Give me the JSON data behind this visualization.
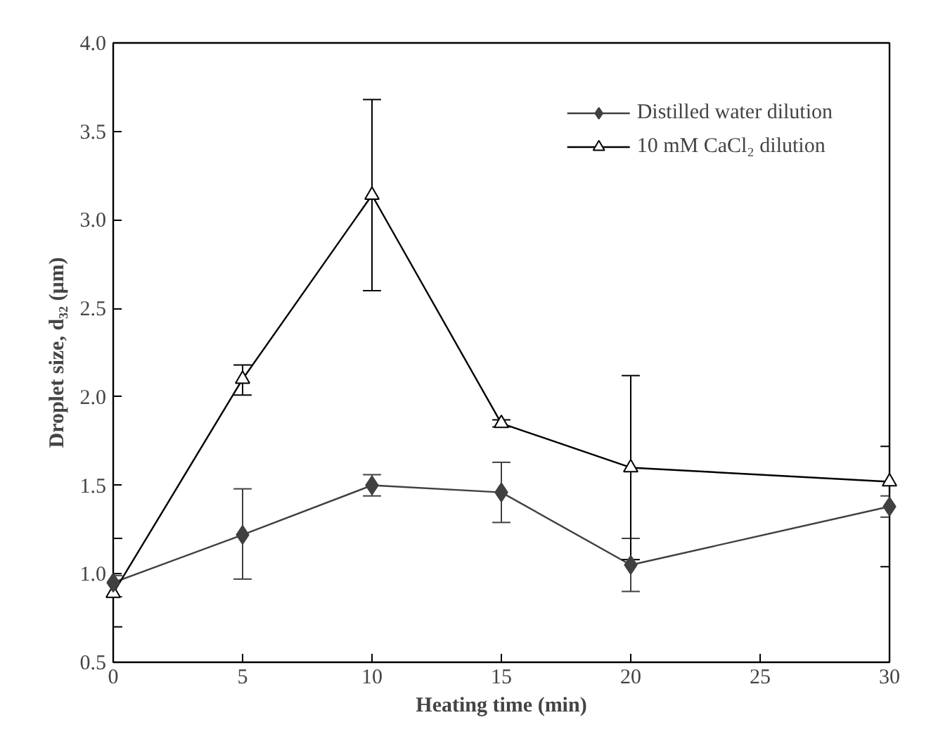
{
  "chart_data": {
    "type": "line",
    "xlabel": "Heating time (min)",
    "ylabel": "Droplet size, d₃₂ (μm)",
    "x": [
      0,
      5,
      10,
      15,
      20,
      30
    ],
    "series": [
      {
        "name": "Distilled water dilution",
        "color": "#404040",
        "marker": "diamond",
        "values": [
          0.95,
          1.22,
          1.5,
          1.46,
          1.05,
          1.38
        ],
        "errors": [
          [
            0.87,
            0.99
          ],
          [
            0.97,
            1.48
          ],
          [
            1.44,
            1.56
          ],
          [
            1.29,
            1.63
          ],
          [
            0.9,
            1.2
          ],
          [
            1.32,
            1.44
          ]
        ]
      },
      {
        "name": "10 mM CaCl₂ dilution",
        "color": "#000000",
        "marker": "triangle",
        "values": [
          0.89,
          2.1,
          3.14,
          1.85,
          1.6,
          1.52
        ],
        "errors": [
          [
            0.7,
            1.2
          ],
          [
            2.01,
            2.18
          ],
          [
            2.6,
            3.68
          ],
          [
            1.83,
            1.87
          ],
          [
            1.08,
            2.12
          ],
          [
            1.04,
            1.72
          ]
        ]
      }
    ],
    "xlim": [
      0,
      30
    ],
    "xticks": [
      0,
      5,
      10,
      15,
      20,
      25,
      30
    ],
    "ylim": [
      0.5,
      4.0
    ],
    "yticks": [
      {
        "value": 0.5,
        "label": "0.5"
      },
      {
        "value": 1.0,
        "label": "1.0"
      },
      {
        "value": 1.5,
        "label": "1.5"
      },
      {
        "value": 2.0,
        "label": "2.0"
      },
      {
        "value": 2.5,
        "label": "2.5"
      },
      {
        "value": 3.0,
        "label": "3.0"
      },
      {
        "value": 3.5,
        "label": "3.5"
      },
      {
        "value": 4.0,
        "label": "4.0"
      }
    ],
    "grid": false,
    "legend": "top right",
    "line_style": "solid"
  }
}
